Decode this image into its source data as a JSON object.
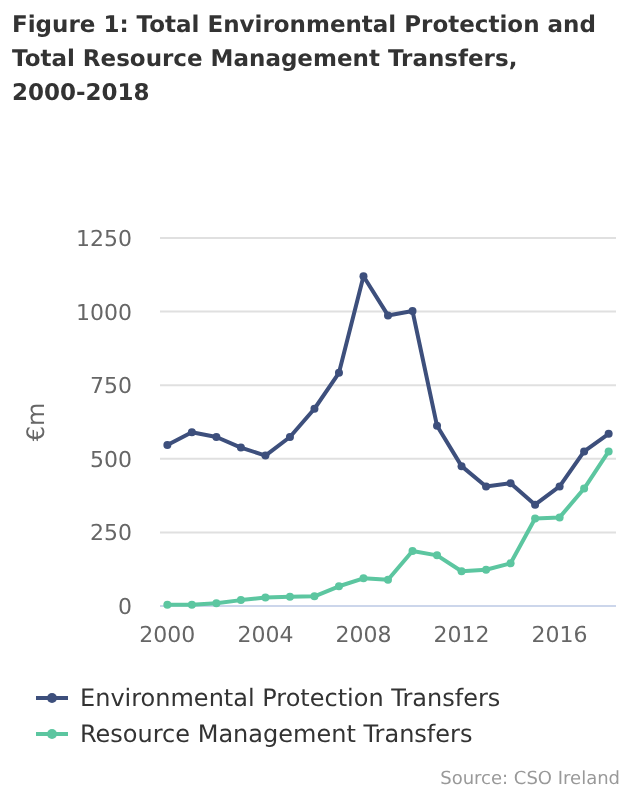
{
  "chart_data": {
    "type": "line",
    "title": "Figure 1: Total Environmental Protection and Total Resource Management Transfers, 2000-2018",
    "ylabel": "€m",
    "x": [
      2000,
      2001,
      2002,
      2003,
      2004,
      2005,
      2006,
      2007,
      2008,
      2009,
      2010,
      2011,
      2012,
      2013,
      2014,
      2015,
      2016,
      2017,
      2018
    ],
    "series": [
      {
        "name": "Environmental Protection Transfers",
        "color": "#3d4f7c",
        "values": [
          547,
          590,
          574,
          538,
          511,
          574,
          670,
          792,
          1120,
          987,
          1002,
          612,
          475,
          406,
          417,
          344,
          406,
          525,
          585
        ]
      },
      {
        "name": "Resource Management Transfers",
        "color": "#5cc6a0",
        "values": [
          4,
          4,
          9,
          20,
          29,
          31,
          33,
          67,
          94,
          89,
          187,
          172,
          118,
          123,
          145,
          297,
          301,
          399,
          525
        ]
      }
    ],
    "xlim": [
      1999.7,
      2018.3
    ],
    "xticks": [
      2000,
      2004,
      2008,
      2012,
      2016
    ],
    "ylim": [
      0,
      1250
    ],
    "yticks": [
      0,
      250,
      500,
      750,
      1000,
      1250
    ],
    "grid": "y",
    "legend": "bottom",
    "marker": "circle",
    "line_style": "solid",
    "annotations": [
      "Source: CSO Ireland"
    ]
  }
}
